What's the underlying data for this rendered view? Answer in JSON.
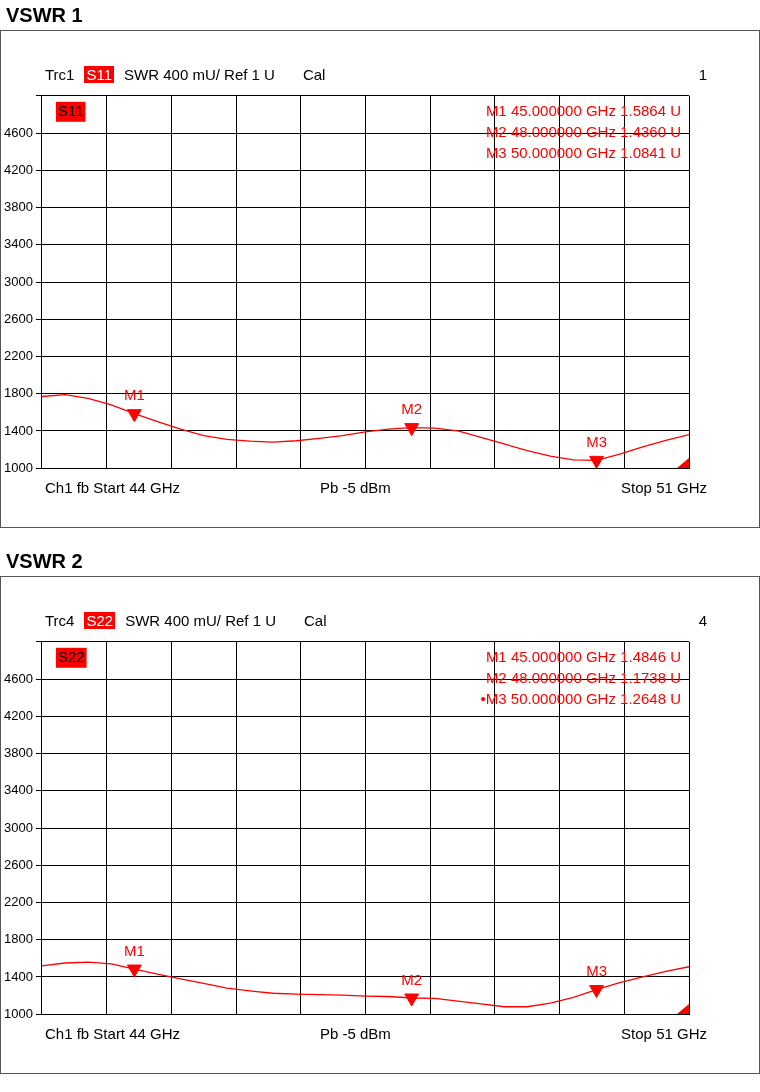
{
  "chart_data": [
    {
      "type": "line",
      "title": "VSWR 1",
      "annotations": [
        "Trc1",
        "S11",
        "SWR 400 mU/ Ref 1 U",
        "Cal",
        "1",
        "S11",
        "M1 45.000000 GHz 1.5864 U",
        "M2 48.000000 GHz 1.4360 U",
        "M3 50.000000 GHz 1.0841 U",
        "Ch1 fb Start 44 GHz",
        "Pb -5 dBm",
        "Stop 51 GHz",
        "M1",
        "M2",
        "M3"
      ],
      "categories": [
        null,
        null,
        null,
        null,
        null,
        null,
        null,
        null,
        null,
        null,
        null,
        null,
        null,
        null,
        null,
        null,
        null,
        null,
        null,
        null,
        null,
        null,
        null,
        null,
        null,
        null,
        null,
        null,
        null
      ],
      "series": [
        {
          "type": "line",
          "color": "#ff0000",
          "values": [
            1770,
            1790,
            1750,
            1680,
            1586,
            1500,
            1420,
            1350,
            1310,
            1290,
            1280,
            1295,
            1320,
            1350,
            1390,
            1420,
            1436,
            1430,
            1400,
            1330,
            1260,
            1190,
            1130,
            1090,
            1084,
            1150,
            1230,
            1300,
            1360
          ]
        },
        {
          "type": "scatter",
          "color": "#ff0000",
          "marker": "triangle",
          "values": [
            null,
            null,
            null,
            null,
            1586,
            null,
            null,
            null,
            null,
            null,
            null,
            null,
            null,
            null,
            null,
            null,
            1436,
            null,
            null,
            null,
            null,
            null,
            null,
            null,
            1084,
            null,
            null,
            null,
            null
          ]
        }
      ],
      "ylim": [
        1000,
        5000
      ],
      "yticks": [
        1000,
        1400,
        1800,
        2200,
        2600,
        3000,
        3400,
        3800,
        4200,
        4600,
        {
          "value": 5000,
          "label": null
        }
      ],
      "grid": true,
      "tick_labels": "y"
    },
    {
      "type": "line",
      "title": "VSWR 2",
      "annotations": [
        "Trc4",
        "S22",
        "SWR 400 mU/ Ref 1 U",
        "Cal",
        "4",
        "S22",
        "M1 45.000000 GHz 1.4846 U",
        "M2 48.000000 GHz 1.1738 U",
        "•M3 50.000000 GHz 1.2648 U",
        "Ch1 fb Start 44 GHz",
        "Pb -5 dBm",
        "Stop 51 GHz",
        "M1",
        "M2",
        "M3"
      ],
      "categories": [
        null,
        null,
        null,
        null,
        null,
        null,
        null,
        null,
        null,
        null,
        null,
        null,
        null,
        null,
        null,
        null,
        null,
        null,
        null,
        null,
        null,
        null,
        null,
        null,
        null,
        null,
        null,
        null,
        null
      ],
      "series": [
        {
          "type": "line",
          "color": "#ff0000",
          "values": [
            1520,
            1550,
            1560,
            1540,
            1485,
            1430,
            1380,
            1330,
            1280,
            1250,
            1225,
            1215,
            1210,
            1205,
            1195,
            1190,
            1174,
            1170,
            1140,
            1110,
            1080,
            1080,
            1120,
            1180,
            1265,
            1340,
            1400,
            1460,
            1510
          ]
        },
        {
          "type": "scatter",
          "color": "#ff0000",
          "marker": "triangle",
          "values": [
            null,
            null,
            null,
            null,
            1485,
            null,
            null,
            null,
            null,
            null,
            null,
            null,
            null,
            null,
            null,
            null,
            1174,
            null,
            null,
            null,
            null,
            null,
            null,
            null,
            1265,
            null,
            null,
            null,
            null
          ]
        }
      ],
      "ylim": [
        1000,
        5000
      ],
      "yticks": [
        1000,
        1400,
        1800,
        2200,
        2600,
        3000,
        3400,
        3800,
        4200,
        4600,
        {
          "value": 5000,
          "label": null
        }
      ],
      "grid": true,
      "tick_labels": "y"
    }
  ]
}
